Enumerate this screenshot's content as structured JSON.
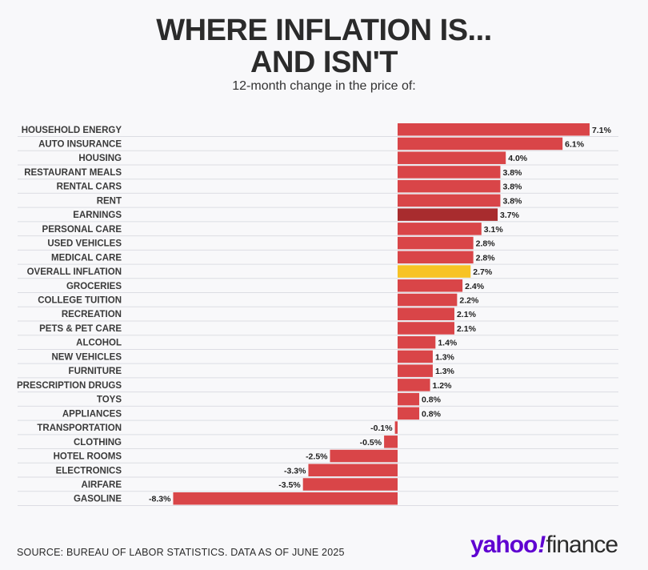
{
  "title_line1": "WHERE INFLATION IS...",
  "title_line2": "AND ISN'T",
  "subtitle": "12-month change in the price of:",
  "source": "SOURCE: BUREAU OF LABOR STATISTICS. DATA AS OF JUNE 2025",
  "logo": {
    "brand": "yahoo",
    "bang": "!",
    "product": "finance"
  },
  "colors": {
    "default_bar": "#d94548",
    "earnings_bar": "#a82c2e",
    "overall_bar": "#f7c325",
    "grid": "#dcdde3"
  },
  "chart_data": {
    "type": "bar",
    "orientation": "horizontal",
    "title": "WHERE INFLATION IS... AND ISN'T",
    "subtitle": "12-month change in the price of:",
    "xlim": [
      -8.3,
      7.1
    ],
    "categories": [
      "HOUSEHOLD ENERGY",
      "AUTO INSURANCE",
      "HOUSING",
      "RESTAURANT MEALS",
      "RENTAL CARS",
      "RENT",
      "EARNINGS",
      "PERSONAL CARE",
      "USED VEHICLES",
      "MEDICAL CARE",
      "OVERALL INFLATION",
      "GROCERIES",
      "COLLEGE TUITION",
      "RECREATION",
      "PETS & PET CARE",
      "ALCOHOL",
      "NEW VEHICLES",
      "FURNITURE",
      "PRESCRIPTION DRUGS",
      "TOYS",
      "APPLIANCES",
      "TRANSPORTATION",
      "CLOTHING",
      "HOTEL ROOMS",
      "ELECTRONICS",
      "AIRFARE",
      "GASOLINE"
    ],
    "values": [
      7.1,
      6.1,
      4.0,
      3.8,
      3.8,
      3.8,
      3.7,
      3.1,
      2.8,
      2.8,
      2.7,
      2.4,
      2.2,
      2.1,
      2.1,
      1.4,
      1.3,
      1.3,
      1.2,
      0.8,
      0.8,
      -0.1,
      -0.5,
      -2.5,
      -3.3,
      -3.5,
      -8.3
    ],
    "value_labels": [
      "7.1%",
      "6.1%",
      "4.0%",
      "3.8%",
      "3.8%",
      "3.8%",
      "3.7%",
      "3.1%",
      "2.8%",
      "2.8%",
      "2.7%",
      "2.4%",
      "2.2%",
      "2.1%",
      "2.1%",
      "1.4%",
      "1.3%",
      "1.3%",
      "1.2%",
      "0.8%",
      "0.8%",
      "-0.1%",
      "-0.5%",
      "-2.5%",
      "-3.3%",
      "-3.5%",
      "-8.3%"
    ],
    "highlight": {
      "EARNINGS": "#a82c2e",
      "OVERALL INFLATION": "#f7c325"
    },
    "grid": true
  }
}
